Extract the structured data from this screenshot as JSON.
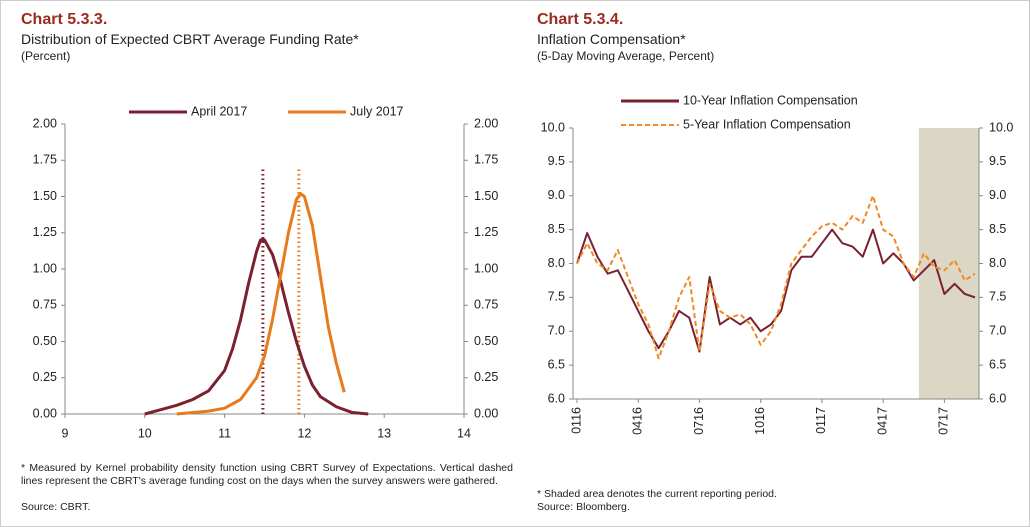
{
  "chart_data": [
    {
      "type": "line",
      "title": "Chart 5.3.3.",
      "subtitle": "Distribution of Expected CBRT Average Funding Rate*",
      "units": "(Percent)",
      "footnote": "* Measured by Kernel probability density function using CBRT Survey of Expectations. Vertical dashed lines represent the CBRT's average funding cost on the days when the survey answers were gathered.",
      "source": "Source: CBRT.",
      "legend": "top",
      "xlim": [
        9,
        14
      ],
      "xticks": [
        9,
        10,
        11,
        12,
        13,
        14
      ],
      "ylim": [
        0,
        2
      ],
      "yticks": [
        {
          "value": 0,
          "label": "0.00"
        },
        {
          "value": 0.25,
          "label": "0.25"
        },
        {
          "value": 0.5,
          "label": "0.50"
        },
        {
          "value": 0.75,
          "label": "0.75"
        },
        {
          "value": 1,
          "label": "1.00"
        },
        {
          "value": 1.25,
          "label": "1.25"
        },
        {
          "value": 1.5,
          "label": "1.50"
        },
        {
          "value": 1.75,
          "label": "1.75"
        },
        {
          "value": 2,
          "label": "2.00"
        }
      ],
      "y2lim": [
        0,
        2
      ],
      "y2ticks": [
        {
          "value": 0,
          "label": "0.00"
        },
        {
          "value": 0.25,
          "label": "0.25"
        },
        {
          "value": 0.5,
          "label": "0.50"
        },
        {
          "value": 0.75,
          "label": "0.75"
        },
        {
          "value": 1,
          "label": "1.00"
        },
        {
          "value": 1.25,
          "label": "1.25"
        },
        {
          "value": 1.5,
          "label": "1.50"
        },
        {
          "value": 1.75,
          "label": "1.75"
        },
        {
          "value": 2,
          "label": "2.00"
        }
      ],
      "series": [
        {
          "name": "April 2017",
          "color": "#7b2030",
          "x": [
            10.0,
            10.2,
            10.4,
            10.6,
            10.8,
            11.0,
            11.1,
            11.2,
            11.3,
            11.4,
            11.45,
            11.5,
            11.6,
            11.7,
            11.8,
            11.9,
            12.0,
            12.1,
            12.2,
            12.4,
            12.6,
            12.8
          ],
          "values": [
            0.0,
            0.03,
            0.06,
            0.1,
            0.16,
            0.3,
            0.45,
            0.65,
            0.9,
            1.12,
            1.2,
            1.2,
            1.1,
            0.92,
            0.7,
            0.5,
            0.33,
            0.2,
            0.12,
            0.05,
            0.01,
            0.0
          ]
        },
        {
          "name": "July 2017",
          "color": "#e87a1e",
          "x": [
            10.4,
            10.8,
            11.0,
            11.2,
            11.4,
            11.5,
            11.6,
            11.7,
            11.8,
            11.9,
            11.95,
            12.0,
            12.1,
            12.2,
            12.3,
            12.4,
            12.5
          ],
          "values": [
            0.0,
            0.02,
            0.04,
            0.1,
            0.25,
            0.4,
            0.65,
            0.95,
            1.25,
            1.48,
            1.52,
            1.5,
            1.3,
            0.95,
            0.6,
            0.35,
            0.15
          ]
        }
      ],
      "reference_lines": [
        {
          "x": 11.48,
          "y": 1.7,
          "color": "#7b2030"
        },
        {
          "x": 11.93,
          "y": 1.7,
          "color": "#e87a1e"
        }
      ]
    },
    {
      "type": "line",
      "title": "Chart 5.3.4.",
      "subtitle": "Inflation Compensation*",
      "units": "(5-Day Moving Average, Percent)",
      "footnote": "* Shaded area denotes the current reporting period.",
      "source": "Source: Bloomberg.",
      "legend": "top",
      "categories": [
        "0116",
        null,
        null,
        null,
        null,
        null,
        "0416",
        null,
        null,
        null,
        null,
        null,
        "0716",
        null,
        null,
        null,
        null,
        null,
        "1016",
        null,
        null,
        null,
        null,
        null,
        "0117",
        null,
        null,
        null,
        null,
        null,
        "0417",
        null,
        null,
        null,
        null,
        null,
        "0717",
        null,
        null,
        null
      ],
      "ylim": [
        6,
        10
      ],
      "yticks": [
        {
          "value": 6,
          "label": "6.0"
        },
        {
          "value": 6.5,
          "label": "6.5"
        },
        {
          "value": 7,
          "label": "7.0"
        },
        {
          "value": 7.5,
          "label": "7.5"
        },
        {
          "value": 8,
          "label": "8.0"
        },
        {
          "value": 8.5,
          "label": "8.5"
        },
        {
          "value": 9,
          "label": "9.0"
        },
        {
          "value": 9.5,
          "label": "9.5"
        },
        {
          "value": 10,
          "label": "10.0"
        }
      ],
      "y2lim": [
        6,
        10
      ],
      "y2ticks": [
        {
          "value": 6,
          "label": "6.0"
        },
        {
          "value": 6.5,
          "label": "6.5"
        },
        {
          "value": 7,
          "label": "7.0"
        },
        {
          "value": 7.5,
          "label": "7.5"
        },
        {
          "value": 8,
          "label": "8.0"
        },
        {
          "value": 8.5,
          "label": "8.5"
        },
        {
          "value": 9,
          "label": "9.0"
        },
        {
          "value": 9.5,
          "label": "9.5"
        },
        {
          "value": 10,
          "label": "10.0"
        }
      ],
      "shaded_start": 33.5,
      "shade_color": "#dcd6c4",
      "series": [
        {
          "name": "10-Year Inflation Compensation",
          "color": "#7b2030",
          "dash": false,
          "values": [
            8.0,
            8.45,
            8.1,
            7.85,
            7.9,
            7.6,
            7.3,
            7.0,
            6.75,
            7.0,
            7.3,
            7.2,
            6.7,
            7.8,
            7.1,
            7.2,
            7.1,
            7.2,
            7.0,
            7.1,
            7.3,
            7.9,
            8.1,
            8.1,
            8.3,
            8.5,
            8.3,
            8.25,
            8.1,
            8.5,
            8.0,
            8.15,
            8.0,
            7.75,
            7.9,
            8.05,
            7.55,
            7.7,
            7.55,
            7.5
          ]
        },
        {
          "name": "5-Year Inflation Compensation",
          "color": "#f08a24",
          "dash": true,
          "values": [
            8.0,
            8.3,
            8.0,
            7.9,
            8.2,
            7.8,
            7.4,
            7.1,
            6.6,
            7.0,
            7.5,
            7.8,
            6.7,
            7.7,
            7.3,
            7.2,
            7.25,
            7.1,
            6.8,
            7.0,
            7.4,
            8.0,
            8.2,
            8.4,
            8.55,
            8.6,
            8.5,
            8.7,
            8.6,
            9.0,
            8.5,
            8.4,
            8.0,
            7.8,
            8.15,
            7.95,
            7.9,
            8.05,
            7.75,
            7.85
          ]
        }
      ]
    }
  ]
}
